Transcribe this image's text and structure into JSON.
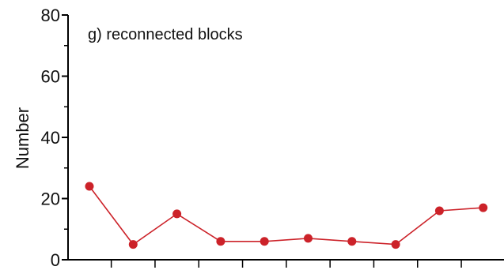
{
  "chart_data": {
    "type": "line",
    "title": "g) reconnected blocks",
    "xlabel": "",
    "ylabel": "Number",
    "ylim": [
      0,
      80
    ],
    "yticks": [
      0,
      20,
      40,
      60,
      80
    ],
    "ytick_labels": [
      "0",
      "20",
      "40",
      "60",
      "80"
    ],
    "x": [
      1,
      2,
      3,
      4,
      5,
      6,
      7,
      8,
      9,
      10
    ],
    "series": [
      {
        "values": [
          24,
          5,
          15,
          6,
          6,
          7,
          6,
          5,
          16,
          17
        ]
      }
    ],
    "grid": false,
    "colors": {
      "series": "#cc2229",
      "axis": "#000000"
    }
  }
}
